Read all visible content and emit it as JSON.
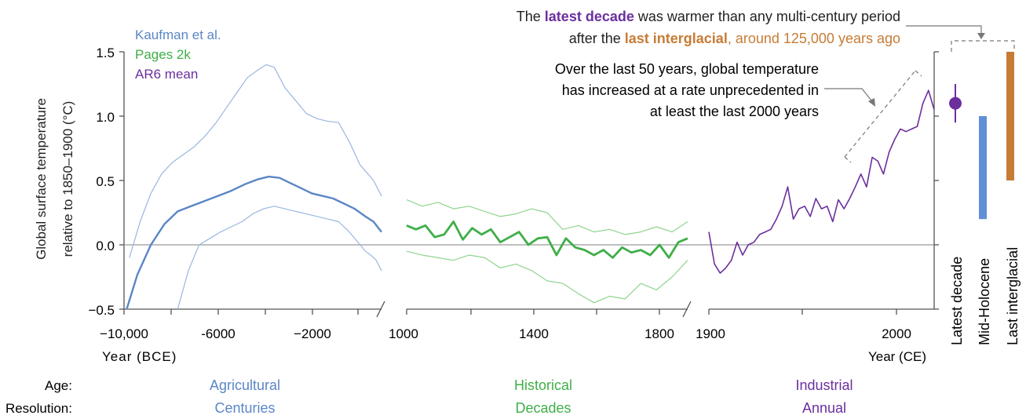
{
  "colors": {
    "kaufman": "#5b86c6",
    "kaufman_light": "#9ab6e0",
    "pages2k": "#3fae49",
    "pages2k_light": "#8fd48f",
    "ar6": "#6b2f9e",
    "interglacial": "#c77c36",
    "midholocene": "#5f8fd6",
    "axis": "#555555",
    "text": "#231f20",
    "dashed": "#777777"
  },
  "labels": {
    "ylabel_line1": "Global surface temperature",
    "ylabel_line2": "relative to 1850–1900 (°C)",
    "xlabel_bce": "Year (BCE)",
    "xlabel_ce": "Year (CE)",
    "age_label": "Age:",
    "resolution_label": "Resolution:",
    "age_agricultural": "Agricultural",
    "res_agricultural": "Centuries",
    "age_historical": "Historical",
    "res_historical": "Decades",
    "age_industrial": "Industrial",
    "res_industrial": "Annual",
    "callout1_pre": "The ",
    "callout1_hl1": "latest decade",
    "callout1_mid": " was warmer than any multi-century period",
    "callout1_line2_pre": "after the ",
    "callout1_hl2": "last interglacial",
    "callout1_line2_post": ", around 125,000 years ago",
    "callout2_line1": "Over the last 50 years, global temperature",
    "callout2_line2": "has increased at a rate unprecedented in",
    "callout2_line3": "at least the last 2000 years",
    "bar_latest": "Latest decade",
    "bar_midholocene": "Mid-Holocene",
    "bar_interglacial": "Last interglacial"
  },
  "chart_data": [
    {
      "type": "line",
      "panel": "Agricultural",
      "xlabel": "Year (BCE)",
      "ylabel": "Global surface temperature relative to 1850–1900 (°C)",
      "xlim": [
        -10000,
        -400
      ],
      "ylim": [
        -0.5,
        1.5
      ],
      "yticks": [
        "1.5",
        "1.0",
        "0.5",
        "0.0",
        "−0.5"
      ],
      "xticks": [
        "−10,000",
        "-6000",
        "−2000"
      ],
      "legend": [
        "Kaufman et al.",
        "Pages 2k",
        "AR6 mean"
      ],
      "series": [
        {
          "name": "Kaufman et al.",
          "x": [
            -9900,
            -9500,
            -9000,
            -8500,
            -8000,
            -7500,
            -7000,
            -6500,
            -6000,
            -5500,
            -5000,
            -4600,
            -4200,
            -3800,
            -3400,
            -3000,
            -2600,
            -2200,
            -1800,
            -1400,
            -1000,
            -700,
            -400
          ],
          "y": [
            -0.5,
            -0.23,
            0.0,
            0.16,
            0.26,
            0.3,
            0.34,
            0.38,
            0.42,
            0.47,
            0.51,
            0.53,
            0.52,
            0.48,
            0.44,
            0.4,
            0.38,
            0.36,
            0.32,
            0.28,
            0.22,
            0.18,
            0.1
          ]
        },
        {
          "name": "Kaufman et al. upper",
          "x": [
            -9800,
            -9400,
            -9000,
            -8600,
            -8200,
            -7800,
            -7400,
            -7000,
            -6600,
            -6200,
            -5800,
            -5400,
            -5000,
            -4700,
            -4400,
            -4200,
            -4000,
            -3600,
            -3200,
            -2800,
            -2400,
            -2000,
            -1600,
            -1200,
            -900,
            -700,
            -400
          ],
          "y": [
            -0.1,
            0.18,
            0.4,
            0.55,
            0.64,
            0.7,
            0.76,
            0.84,
            0.94,
            1.06,
            1.18,
            1.3,
            1.36,
            1.4,
            1.38,
            1.3,
            1.22,
            1.12,
            1.02,
            0.98,
            0.96,
            0.95,
            0.8,
            0.62,
            0.55,
            0.5,
            0.38
          ]
        },
        {
          "name": "Kaufman et al. lower",
          "x": [
            -8000,
            -7600,
            -7200,
            -6800,
            -6400,
            -6000,
            -5600,
            -5200,
            -4800,
            -4400,
            -4000,
            -3600,
            -3200,
            -2800,
            -2400,
            -2000,
            -1600,
            -1200,
            -1000,
            -800,
            -600,
            -400
          ],
          "y": [
            -0.5,
            -0.2,
            0.0,
            0.05,
            0.1,
            0.14,
            0.18,
            0.24,
            0.28,
            0.3,
            0.28,
            0.26,
            0.24,
            0.22,
            0.2,
            0.18,
            0.1,
            0.0,
            -0.05,
            -0.08,
            -0.12,
            -0.2
          ]
        }
      ]
    },
    {
      "type": "line",
      "panel": "Historical",
      "xlim": [
        1000,
        1900
      ],
      "ylim": [
        -0.5,
        1.5
      ],
      "xticks": [
        "1000",
        "1400",
        "1800"
      ],
      "series": [
        {
          "name": "Pages 2k",
          "x": [
            1000,
            1030,
            1060,
            1090,
            1120,
            1150,
            1180,
            1210,
            1240,
            1270,
            1300,
            1330,
            1360,
            1390,
            1420,
            1450,
            1480,
            1510,
            1540,
            1570,
            1600,
            1630,
            1660,
            1690,
            1720,
            1750,
            1780,
            1810,
            1840,
            1870,
            1900
          ],
          "y": [
            0.15,
            0.12,
            0.15,
            0.06,
            0.08,
            0.18,
            0.04,
            0.13,
            0.08,
            0.12,
            0.02,
            0.06,
            0.1,
            0.0,
            0.05,
            0.06,
            -0.08,
            0.05,
            -0.02,
            -0.04,
            -0.08,
            -0.04,
            -0.1,
            -0.02,
            -0.06,
            -0.04,
            -0.08,
            0.0,
            -0.1,
            0.02,
            0.05
          ]
        },
        {
          "name": "Pages 2k upper",
          "x": [
            1000,
            1050,
            1100,
            1150,
            1200,
            1250,
            1300,
            1350,
            1400,
            1450,
            1500,
            1550,
            1600,
            1650,
            1700,
            1750,
            1800,
            1850,
            1900
          ],
          "y": [
            0.35,
            0.3,
            0.33,
            0.28,
            0.3,
            0.26,
            0.22,
            0.24,
            0.28,
            0.25,
            0.12,
            0.15,
            0.1,
            0.12,
            0.08,
            0.1,
            0.14,
            0.1,
            0.18
          ]
        },
        {
          "name": "Pages 2k lower",
          "x": [
            1000,
            1050,
            1100,
            1150,
            1200,
            1250,
            1300,
            1350,
            1400,
            1450,
            1500,
            1550,
            1600,
            1650,
            1700,
            1750,
            1800,
            1850,
            1900
          ],
          "y": [
            -0.05,
            -0.08,
            -0.1,
            -0.12,
            -0.08,
            -0.1,
            -0.18,
            -0.15,
            -0.2,
            -0.28,
            -0.3,
            -0.38,
            -0.45,
            -0.4,
            -0.42,
            -0.3,
            -0.35,
            -0.25,
            -0.12
          ]
        }
      ]
    },
    {
      "type": "line",
      "panel": "Industrial",
      "xlim": [
        1900,
        2020
      ],
      "ylim": [
        -0.5,
        1.5
      ],
      "xticks": [
        "1900",
        "2000"
      ],
      "series": [
        {
          "name": "AR6 mean",
          "x": [
            1900,
            1903,
            1906,
            1909,
            1912,
            1915,
            1918,
            1921,
            1924,
            1927,
            1930,
            1933,
            1936,
            1939,
            1942,
            1945,
            1948,
            1951,
            1954,
            1957,
            1960,
            1963,
            1966,
            1969,
            1972,
            1975,
            1978,
            1981,
            1984,
            1987,
            1990,
            1993,
            1996,
            1999,
            2002,
            2005,
            2008,
            2011,
            2014,
            2017,
            2020
          ],
          "y": [
            0.1,
            -0.15,
            -0.22,
            -0.18,
            -0.12,
            0.02,
            -0.08,
            0.0,
            0.02,
            0.08,
            0.1,
            0.12,
            0.2,
            0.3,
            0.45,
            0.2,
            0.28,
            0.3,
            0.22,
            0.36,
            0.28,
            0.3,
            0.18,
            0.35,
            0.28,
            0.36,
            0.45,
            0.55,
            0.45,
            0.68,
            0.65,
            0.55,
            0.72,
            0.82,
            0.9,
            0.88,
            0.9,
            0.92,
            1.1,
            1.2,
            1.05
          ]
        }
      ]
    },
    {
      "type": "bar",
      "panel": "Comparison",
      "ylim": [
        -0.5,
        1.5
      ],
      "categories": [
        "Latest decade",
        "Mid-Holocene",
        "Last interglacial"
      ],
      "ranges": [
        [
          0.95,
          1.25
        ],
        [
          0.2,
          1.0
        ],
        [
          0.5,
          1.5
        ]
      ],
      "point": {
        "category": "Latest decade",
        "value": 1.1
      }
    }
  ]
}
